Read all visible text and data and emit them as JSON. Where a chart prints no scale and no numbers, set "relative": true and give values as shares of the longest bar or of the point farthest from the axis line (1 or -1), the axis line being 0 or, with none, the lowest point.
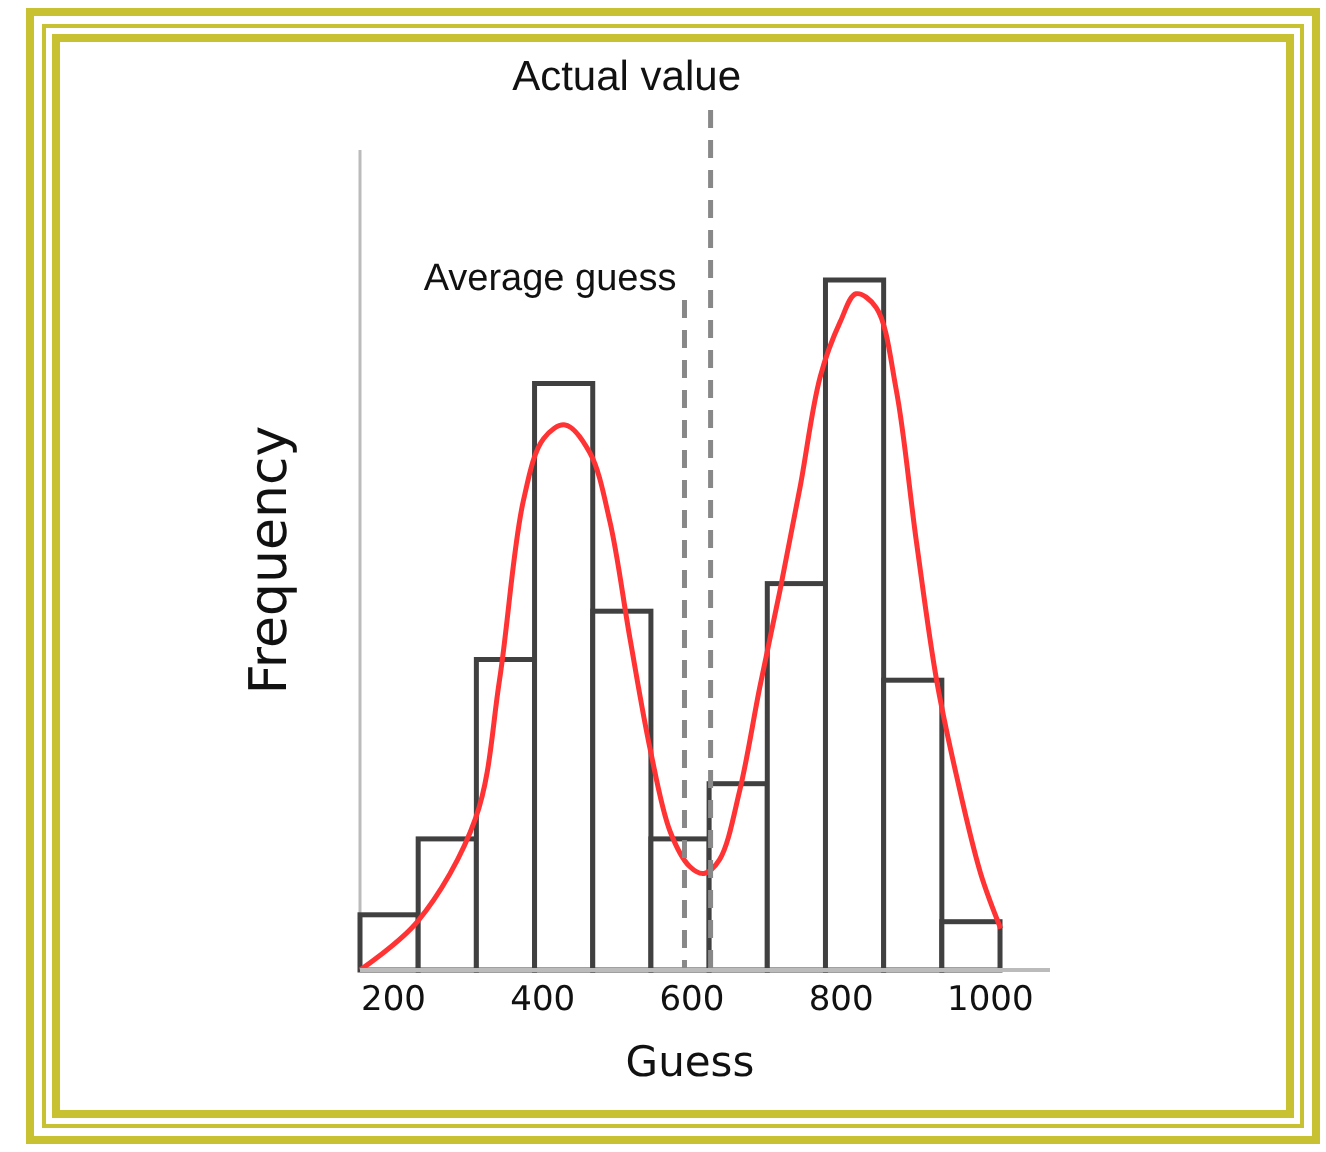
{
  "chart_data": {
    "type": "histogram",
    "relative": true,
    "xlabel": "Guess",
    "ylabel": "Frequency",
    "bins": [
      155,
      233,
      311,
      389,
      467,
      545,
      623,
      701,
      779,
      857,
      935,
      1013
    ],
    "values": [
      0.08,
      0.19,
      0.45,
      0.85,
      0.52,
      0.19,
      0.27,
      0.56,
      1,
      0.42,
      0.07
    ],
    "color": "#404040",
    "series": [
      {
        "type": "line",
        "color": "#ff3333",
        "x": [
          155,
          232,
          310,
          342,
          374,
          401,
          430,
          463,
          490,
          517,
          544,
          571,
          597,
          616,
          637,
          664,
          691,
          718,
          745,
          772,
          799,
          820,
          847,
          874,
          901,
          928,
          955,
          987,
          1014
        ],
        "values": [
          0,
          0.07,
          0.22,
          0.42,
          0.68,
          0.77,
          0.79,
          0.75,
          0.65,
          0.48,
          0.32,
          0.2,
          0.15,
          0.14,
          0.16,
          0.26,
          0.41,
          0.55,
          0.7,
          0.86,
          0.94,
          0.98,
          0.96,
          0.84,
          0.62,
          0.42,
          0.28,
          0.14,
          0.06
        ]
      }
    ],
    "xlim": [
      155,
      1080
    ],
    "xticks": [
      200,
      400,
      600,
      800,
      1000
    ],
    "ref_lines": [
      {
        "axis": "x",
        "value": 625,
        "label": "Actual value",
        "color": "#888888",
        "line_style": "dashed"
      },
      {
        "axis": "x",
        "value": 590,
        "label": "Average guess",
        "color": "#888888",
        "line_style": "dashed"
      }
    ]
  }
}
